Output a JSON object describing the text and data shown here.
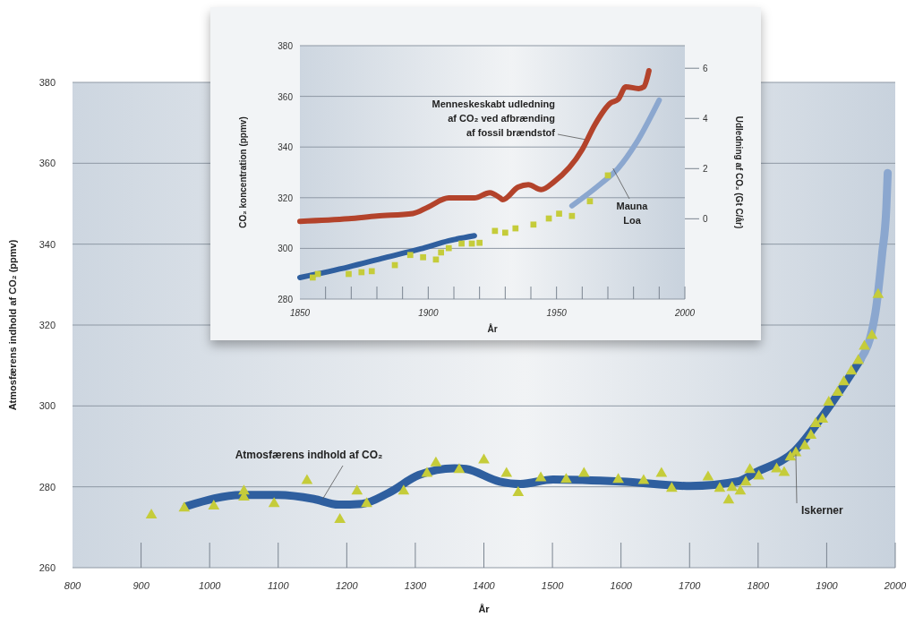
{
  "chart_data": [
    {
      "type": "line",
      "xlabel": "År",
      "ylabel": "Atmosfærens indhold af CO₂ (ppmv)",
      "xlim": [
        800,
        2000
      ],
      "ylim": [
        260,
        380
      ],
      "xticks": [
        800,
        900,
        1000,
        1100,
        1200,
        1300,
        1400,
        1500,
        1600,
        1700,
        1800,
        1900,
        2000
      ],
      "yticks": [
        260,
        280,
        300,
        320,
        340,
        360,
        380
      ],
      "grid": "y",
      "annotations": [
        {
          "text": "Atmosfærens indhold af CO₂",
          "x": 1165,
          "y": 277
        },
        {
          "text": "Iskerner",
          "x": 1855,
          "y": 288
        }
      ],
      "series": [
        {
          "color": "#2f5f9f",
          "x": [
            966,
            1048,
            1100,
            1152,
            1188,
            1222,
            1261,
            1305,
            1357,
            1374,
            1423,
            1453,
            1501,
            1600,
            1701,
            1770,
            1796,
            1853,
            1896,
            1949
          ],
          "values": [
            275.2,
            278,
            278,
            277,
            275.6,
            275.8,
            278.5,
            282.9,
            284.6,
            284.4,
            281.3,
            280.7,
            281.8,
            281.3,
            280.2,
            281.3,
            283.5,
            288.8,
            298,
            311.4
          ]
        },
        {
          "color": "#8ba7cf",
          "x": [
            1949,
            1971,
            1981,
            1987,
            1989
          ],
          "values": [
            311.4,
            323,
            337.8,
            349,
            357.6
          ]
        },
        {
          "type": "scatter",
          "color": "#c5cc3a",
          "marker": "triangle",
          "x": [
            915,
            963,
            1006,
            1050,
            1050,
            1094,
            1142,
            1190,
            1215,
            1229,
            1283,
            1317,
            1330,
            1364,
            1400,
            1433,
            1450,
            1483,
            1520,
            1546,
            1596,
            1633,
            1659,
            1674,
            1727,
            1744,
            1757,
            1762,
            1774,
            1782,
            1788,
            1801,
            1827,
            1838,
            1847,
            1855,
            1868,
            1877,
            1884,
            1894,
            1903,
            1916,
            1925,
            1936,
            1946,
            1955,
            1966,
            1975
          ],
          "values": [
            273,
            274.7,
            275.2,
            278.9,
            277.4,
            275.8,
            281.5,
            271.9,
            278.9,
            275.8,
            278.9,
            283.3,
            285.9,
            284.2,
            286.6,
            283.3,
            278.5,
            282.2,
            281.8,
            283.3,
            281.8,
            281.5,
            283.3,
            279.6,
            282.4,
            279.6,
            276.7,
            279.8,
            278.9,
            281.1,
            284.2,
            282.6,
            284.4,
            283.5,
            287.3,
            288.4,
            290.1,
            292.7,
            295.6,
            296.7,
            300.9,
            303.3,
            305.9,
            308.6,
            311.2,
            314.7,
            317.4,
            327.5
          ]
        }
      ]
    },
    {
      "type": "line",
      "xlabel": "År",
      "ylabel": "CO₂ koncentration (ppmv)",
      "y2label": "Udledning af CO₂ (Gt C/år)",
      "xlim": [
        1850,
        2000
      ],
      "ylim": [
        280,
        380
      ],
      "y2lim": [
        -3.2,
        6.9
      ],
      "xticks": [
        1850,
        {
          "value": 1860,
          "label": null
        },
        {
          "value": 1870,
          "label": null
        },
        {
          "value": 1880,
          "label": null
        },
        {
          "value": 1890,
          "label": null
        },
        1900,
        {
          "value": 1910,
          "label": null
        },
        {
          "value": 1920,
          "label": null
        },
        {
          "value": 1930,
          "label": null
        },
        {
          "value": 1940,
          "label": null
        },
        1950,
        {
          "value": 1960,
          "label": null
        },
        {
          "value": 1970,
          "label": null
        },
        {
          "value": 1980,
          "label": null
        },
        {
          "value": 1990,
          "label": null
        },
        2000
      ],
      "yticks": [
        280,
        300,
        320,
        340,
        360,
        380
      ],
      "y2ticks": [
        0,
        2,
        4,
        6
      ],
      "grid": "y",
      "annotations": [
        {
          "text": "Menneskeskabt udledning af CO₂ ved afbrænding af fossil brændstof",
          "x": 1961,
          "y": 343
        },
        {
          "text": "Mauna Loa",
          "x": 1972,
          "y": 331.6
        }
      ],
      "series": [
        {
          "axis": "y2",
          "color": "#b3432b",
          "x": [
            1850,
            1869,
            1880,
            1894,
            1900,
            1908,
            1918,
            1924,
            1928,
            1929,
            1935,
            1939,
            1944,
            1949,
            1960,
            1965,
            1971,
            1974,
            1977,
            1982,
            1984,
            1986
          ],
          "values": [
            -0.1,
            0,
            0.11,
            0.21,
            0.47,
            0.83,
            0.83,
            1.04,
            0.83,
            0.76,
            1.26,
            1.36,
            1.16,
            1.47,
            2.76,
            3.76,
            4.61,
            4.76,
            5.26,
            5.19,
            5.26,
            5.9
          ]
        },
        {
          "color": "#2f5f9f",
          "x": [
            1850,
            1869,
            1883,
            1897,
            1908,
            1918
          ],
          "values": [
            288.5,
            292.7,
            296.3,
            299.8,
            303,
            305
          ]
        },
        {
          "color": "#8ba7cf",
          "x": [
            1956,
            1967,
            1974,
            1981,
            1990
          ],
          "values": [
            316.8,
            325.3,
            331.6,
            341.5,
            358.5
          ]
        },
        {
          "type": "scatter",
          "color": "#c5cc3a",
          "marker": "square",
          "x": [
            1855,
            1857,
            1869,
            1874,
            1878,
            1887,
            1893,
            1898,
            1903,
            1905,
            1908,
            1913,
            1917,
            1920,
            1926,
            1930,
            1934,
            1941,
            1947,
            1951,
            1956,
            1963,
            1970
          ],
          "values": [
            288.5,
            289.9,
            289.9,
            290.6,
            291,
            293.4,
            297.4,
            296.5,
            295.6,
            298.4,
            300.1,
            301.9,
            301.9,
            302.2,
            306.9,
            306.2,
            307.9,
            309.4,
            311.8,
            313.7,
            312.8,
            318.6,
            328.8
          ]
        }
      ]
    }
  ]
}
